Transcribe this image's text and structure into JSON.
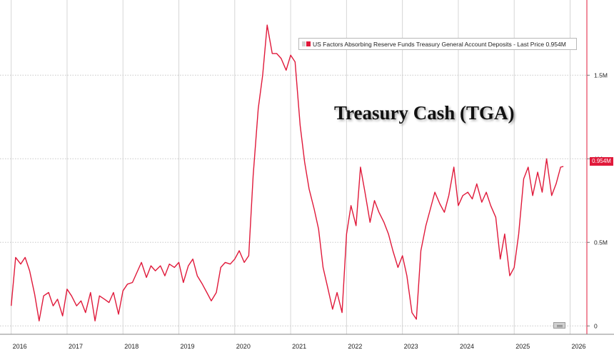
{
  "chart_data": {
    "type": "line",
    "title": "Treasury Cash (TGA)",
    "series": [
      {
        "name": "US Factors Absorbing Reserve Funds Treasury General Account Deposits - Last Price 0.954M",
        "color": "#e0193a",
        "points": [
          [
            2016.0,
            0.12
          ],
          [
            2016.08,
            0.41
          ],
          [
            2016.17,
            0.37
          ],
          [
            2016.25,
            0.41
          ],
          [
            2016.33,
            0.33
          ],
          [
            2016.42,
            0.19
          ],
          [
            2016.5,
            0.03
          ],
          [
            2016.58,
            0.18
          ],
          [
            2016.67,
            0.2
          ],
          [
            2016.75,
            0.12
          ],
          [
            2016.83,
            0.16
          ],
          [
            2016.92,
            0.06
          ],
          [
            2017.0,
            0.22
          ],
          [
            2017.08,
            0.18
          ],
          [
            2017.17,
            0.12
          ],
          [
            2017.25,
            0.15
          ],
          [
            2017.33,
            0.08
          ],
          [
            2017.42,
            0.2
          ],
          [
            2017.5,
            0.03
          ],
          [
            2017.58,
            0.18
          ],
          [
            2017.67,
            0.16
          ],
          [
            2017.75,
            0.14
          ],
          [
            2017.83,
            0.2
          ],
          [
            2017.92,
            0.07
          ],
          [
            2018.0,
            0.21
          ],
          [
            2018.08,
            0.25
          ],
          [
            2018.17,
            0.26
          ],
          [
            2018.25,
            0.32
          ],
          [
            2018.33,
            0.38
          ],
          [
            2018.42,
            0.29
          ],
          [
            2018.5,
            0.36
          ],
          [
            2018.58,
            0.33
          ],
          [
            2018.67,
            0.36
          ],
          [
            2018.75,
            0.3
          ],
          [
            2018.83,
            0.37
          ],
          [
            2018.92,
            0.35
          ],
          [
            2019.0,
            0.38
          ],
          [
            2019.08,
            0.26
          ],
          [
            2019.17,
            0.36
          ],
          [
            2019.25,
            0.4
          ],
          [
            2019.33,
            0.3
          ],
          [
            2019.42,
            0.25
          ],
          [
            2019.5,
            0.2
          ],
          [
            2019.58,
            0.15
          ],
          [
            2019.67,
            0.2
          ],
          [
            2019.75,
            0.35
          ],
          [
            2019.83,
            0.38
          ],
          [
            2019.92,
            0.37
          ],
          [
            2020.0,
            0.4
          ],
          [
            2020.08,
            0.45
          ],
          [
            2020.17,
            0.38
          ],
          [
            2020.25,
            0.42
          ],
          [
            2020.33,
            0.9
          ],
          [
            2020.42,
            1.3
          ],
          [
            2020.5,
            1.5
          ],
          [
            2020.58,
            1.8
          ],
          [
            2020.67,
            1.63
          ],
          [
            2020.75,
            1.63
          ],
          [
            2020.83,
            1.6
          ],
          [
            2020.92,
            1.53
          ],
          [
            2021.0,
            1.62
          ],
          [
            2021.08,
            1.58
          ],
          [
            2021.17,
            1.2
          ],
          [
            2021.25,
            0.98
          ],
          [
            2021.33,
            0.82
          ],
          [
            2021.42,
            0.7
          ],
          [
            2021.5,
            0.58
          ],
          [
            2021.58,
            0.35
          ],
          [
            2021.67,
            0.22
          ],
          [
            2021.75,
            0.1
          ],
          [
            2021.83,
            0.2
          ],
          [
            2021.92,
            0.08
          ],
          [
            2022.0,
            0.55
          ],
          [
            2022.08,
            0.72
          ],
          [
            2022.17,
            0.6
          ],
          [
            2022.25,
            0.95
          ],
          [
            2022.33,
            0.8
          ],
          [
            2022.42,
            0.62
          ],
          [
            2022.5,
            0.75
          ],
          [
            2022.58,
            0.68
          ],
          [
            2022.67,
            0.62
          ],
          [
            2022.75,
            0.55
          ],
          [
            2022.83,
            0.45
          ],
          [
            2022.92,
            0.35
          ],
          [
            2023.0,
            0.42
          ],
          [
            2023.08,
            0.3
          ],
          [
            2023.17,
            0.08
          ],
          [
            2023.25,
            0.04
          ],
          [
            2023.33,
            0.45
          ],
          [
            2023.42,
            0.6
          ],
          [
            2023.5,
            0.7
          ],
          [
            2023.58,
            0.8
          ],
          [
            2023.67,
            0.73
          ],
          [
            2023.75,
            0.68
          ],
          [
            2023.83,
            0.78
          ],
          [
            2023.92,
            0.95
          ],
          [
            2024.0,
            0.72
          ],
          [
            2024.08,
            0.78
          ],
          [
            2024.17,
            0.8
          ],
          [
            2024.25,
            0.76
          ],
          [
            2024.33,
            0.85
          ],
          [
            2024.42,
            0.74
          ],
          [
            2024.5,
            0.8
          ],
          [
            2024.58,
            0.72
          ],
          [
            2024.67,
            0.65
          ],
          [
            2024.75,
            0.4
          ],
          [
            2024.83,
            0.55
          ],
          [
            2024.92,
            0.3
          ],
          [
            2025.0,
            0.35
          ],
          [
            2025.08,
            0.55
          ],
          [
            2025.17,
            0.88
          ],
          [
            2025.25,
            0.95
          ],
          [
            2025.33,
            0.78
          ],
          [
            2025.42,
            0.92
          ],
          [
            2025.5,
            0.8
          ],
          [
            2025.58,
            1.0
          ],
          [
            2025.67,
            0.78
          ],
          [
            2025.75,
            0.85
          ],
          [
            2025.83,
            0.95
          ],
          [
            2025.88,
            0.954
          ]
        ]
      }
    ],
    "x_ticks": [
      "2016",
      "2017",
      "2018",
      "2019",
      "2020",
      "2021",
      "2022",
      "2023",
      "2024",
      "2025",
      "2026"
    ],
    "y_ticks": [
      "0",
      "0.5M",
      "1M",
      "1.5M"
    ],
    "xlim": [
      2015.8,
      2026.3
    ],
    "ylim": [
      -0.05,
      1.95
    ],
    "last_value_label": "0.954M",
    "grid": true,
    "legend_position": "top-right"
  }
}
